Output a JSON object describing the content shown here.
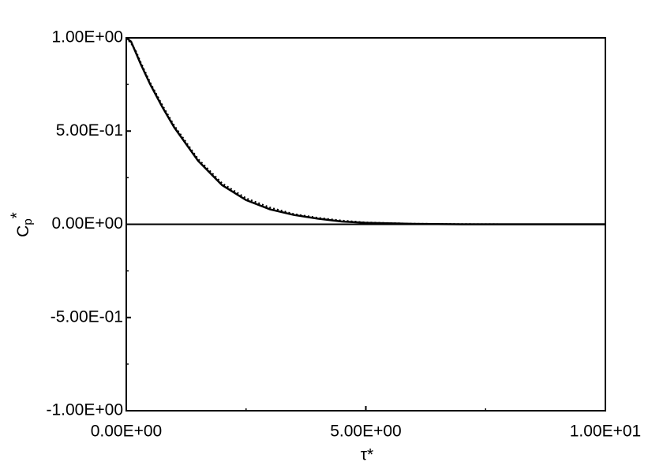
{
  "chart_data": {
    "type": "line",
    "ylabel": {
      "base": "C",
      "sub": "p",
      "sup": "*"
    },
    "xlabel": "τ*",
    "x": [
      0,
      0.1,
      0.2,
      0.3,
      0.5,
      0.75,
      1,
      1.5,
      2,
      2.5,
      3,
      3.5,
      4,
      4.5,
      5,
      6,
      7,
      8,
      9,
      10
    ],
    "series": [
      {
        "color": "#000000",
        "line_style": "solid",
        "values": [
          1.0,
          0.98,
          0.92,
          0.86,
          0.75,
          0.63,
          0.52,
          0.34,
          0.21,
          0.13,
          0.08,
          0.05,
          0.03,
          0.015,
          0.008,
          0.002,
          0,
          0,
          0,
          0
        ]
      },
      {
        "color": "#000000",
        "line_style": "dotted",
        "values": [
          1.0,
          0.97,
          0.93,
          0.87,
          0.76,
          0.64,
          0.53,
          0.35,
          0.22,
          0.14,
          0.09,
          0.055,
          0.035,
          0.02,
          0.01,
          0.003,
          0.001,
          0,
          0,
          0
        ]
      }
    ],
    "xlim": [
      0,
      10
    ],
    "ylim": [
      -1,
      1
    ],
    "xticks": [
      {
        "value": 0,
        "label": "0.00E+00"
      },
      {
        "value": 5,
        "label": "5.00E+00"
      },
      {
        "value": 10,
        "label": "1.00E+01"
      }
    ],
    "yticks": [
      {
        "value": -1,
        "label": "-1.00E+00"
      },
      {
        "value": -0.5,
        "label": "-5.00E-01"
      },
      {
        "value": 0,
        "label": "0.00E+00"
      },
      {
        "value": 0.5,
        "label": "5.00E-01"
      },
      {
        "value": 1,
        "label": "1.00E+00"
      }
    ],
    "xminor": [
      2.5,
      7.5
    ],
    "yminor": [
      -0.75,
      -0.25,
      0.25,
      0.75
    ],
    "zero_line": true
  }
}
